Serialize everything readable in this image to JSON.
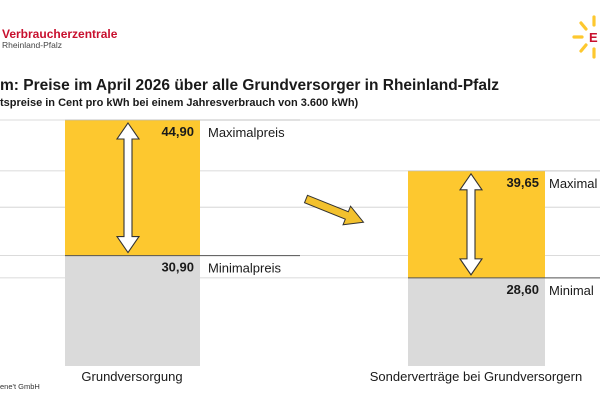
{
  "brand": {
    "name": "Verbraucherzentrale",
    "region": "Rheinland-Pfalz",
    "logo_letter": "E"
  },
  "colors": {
    "brand_red": "#c8102e",
    "bar_max": "#fdc82f",
    "bar_min": "#dadada",
    "arrow_fill": "#ffffff",
    "diagonal_arrow": "#f2c12e",
    "grid": "#cfcfcf"
  },
  "header": {
    "title": "m: Preise im April 2026 über alle Grundversorger in Rheinland-Pfalz",
    "subtitle": "tspreise in Cent pro kWh bei einem Jahresverbrauch von 3.600 kWh)"
  },
  "source": "ene't GmbH",
  "chart_data": {
    "type": "bar",
    "unit": "Cent pro kWh",
    "categories": [
      "Grundversorgung",
      "Sonderverträge bei Grundversorgern"
    ],
    "series": [
      {
        "name": "Minimalpreis",
        "values": [
          30.9,
          28.6
        ],
        "labels": [
          "30,90",
          "28,60"
        ]
      },
      {
        "name": "Maximalpreis",
        "values": [
          44.9,
          39.65
        ],
        "labels": [
          "44,90",
          "39,65"
        ]
      }
    ],
    "annotations": [
      [
        "Maximalpreis",
        "Minimalpreis"
      ],
      [
        "Maximal",
        "Minimal"
      ]
    ],
    "ylim": [
      19.5,
      44.9
    ],
    "grid": true,
    "legend": "none"
  }
}
